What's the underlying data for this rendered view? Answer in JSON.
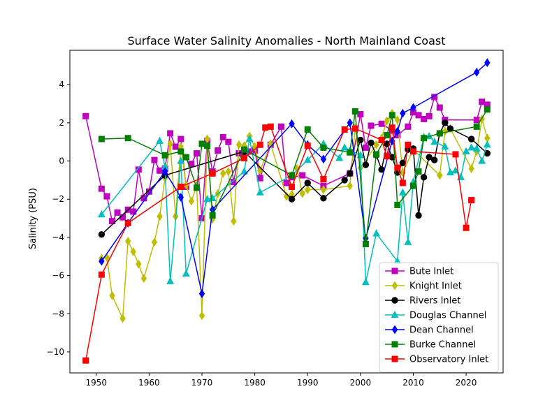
{
  "chart_data": {
    "type": "line",
    "title": "Surface Water Salinity Anomalies - North Mainland Coast",
    "xlabel": "",
    "ylabel": "Salinity (PSU)",
    "xlim": [
      1945,
      2027
    ],
    "ylim": [
      -11.1,
      5.8
    ],
    "xticks": [
      1950,
      1960,
      1970,
      1980,
      1990,
      2000,
      2010,
      2020
    ],
    "yticks": [
      -10,
      -8,
      -6,
      -4,
      -2,
      0,
      2,
      4
    ],
    "ytick_labels": [
      "−10",
      "−8",
      "−6",
      "−4",
      "−2",
      "0",
      "2",
      "4"
    ],
    "grid": false,
    "legend_position": "lower right",
    "series": [
      {
        "name": "Bute Inlet",
        "color": "#bf00bf",
        "marker": "square",
        "points": [
          [
            1948,
            2.35
          ],
          [
            1951,
            -1.45
          ],
          [
            1952,
            -1.85
          ],
          [
            1953,
            -3.15
          ],
          [
            1954,
            -2.7
          ],
          [
            1955,
            -2.95
          ],
          [
            1956,
            -2.55
          ],
          [
            1957,
            -2.65
          ],
          [
            1958,
            -0.45
          ],
          [
            1959,
            -1.95
          ],
          [
            1960,
            -1.6
          ],
          [
            1961,
            0.05
          ],
          [
            1962,
            -0.5
          ],
          [
            1963,
            -0.4
          ],
          [
            1964,
            1.45
          ],
          [
            1965,
            0.75
          ],
          [
            1966,
            1.15
          ],
          [
            1967,
            -1.35
          ],
          [
            1968,
            -0.15
          ],
          [
            1969,
            0.4
          ],
          [
            1970,
            -3.0
          ],
          [
            1971,
            1.05
          ],
          [
            1972,
            -0.55
          ],
          [
            1973,
            0.55
          ],
          [
            1974,
            1.25
          ],
          [
            1975,
            1.0
          ],
          [
            1976,
            -1.1
          ],
          [
            1977,
            0.4
          ],
          [
            1978,
            0.35
          ],
          [
            1979,
            0.5
          ],
          [
            1980,
            0.55
          ],
          [
            1981,
            -0.9
          ],
          [
            1983,
            0.85
          ],
          [
            1985,
            1.8
          ],
          [
            1986,
            -1.15
          ],
          [
            1987,
            -0.85
          ],
          [
            1989,
            -0.75
          ],
          [
            1993,
            -1.3
          ],
          [
            1998,
            -0.65
          ],
          [
            2000,
            2.45
          ],
          [
            2001,
            0.7
          ],
          [
            2002,
            1.85
          ],
          [
            2004,
            1.95
          ],
          [
            2006,
            1.6
          ],
          [
            2007,
            1.35
          ],
          [
            2009,
            1.8
          ],
          [
            2010,
            2.55
          ],
          [
            2011,
            2.4
          ],
          [
            2012,
            2.2
          ],
          [
            2013,
            2.35
          ],
          [
            2014,
            3.35
          ],
          [
            2015,
            2.8
          ],
          [
            2016,
            2.15
          ],
          [
            2022,
            2.15
          ],
          [
            2023,
            3.1
          ],
          [
            2024,
            2.95
          ]
        ]
      },
      {
        "name": "Knight Inlet",
        "color": "#bfbf00",
        "marker": "thin_diamond",
        "points": [
          [
            1951,
            -5.1
          ],
          [
            1952,
            -5.05
          ],
          [
            1953,
            -7.05
          ],
          [
            1955,
            -8.25
          ],
          [
            1956,
            -4.2
          ],
          [
            1957,
            -4.75
          ],
          [
            1958,
            -5.4
          ],
          [
            1959,
            -6.15
          ],
          [
            1961,
            -4.25
          ],
          [
            1962,
            -2.9
          ],
          [
            1963,
            -0.9
          ],
          [
            1964,
            0.9
          ],
          [
            1965,
            -2.9
          ],
          [
            1966,
            0.75
          ],
          [
            1967,
            -1.25
          ],
          [
            1968,
            -2.1
          ],
          [
            1969,
            -1.3
          ],
          [
            1970,
            -8.1
          ],
          [
            1971,
            1.15
          ],
          [
            1972,
            -3.05
          ],
          [
            1973,
            -1.7
          ],
          [
            1974,
            -0.65
          ],
          [
            1975,
            -0.55
          ],
          [
            1976,
            -3.15
          ],
          [
            1977,
            0.85
          ],
          [
            1978,
            0.8
          ],
          [
            1979,
            1.3
          ],
          [
            1980,
            0.75
          ],
          [
            1981,
            -0.5
          ],
          [
            1983,
            0.9
          ],
          [
            1986,
            -1.85
          ],
          [
            1987,
            -1.75
          ],
          [
            1988,
            -0.4
          ],
          [
            1989,
            -1.7
          ],
          [
            1990,
            -1.5
          ],
          [
            1993,
            -1.5
          ],
          [
            1998,
            -1.3
          ],
          [
            1999,
            1.75
          ],
          [
            2000,
            -0.35
          ],
          [
            2003,
            0.85
          ],
          [
            2004,
            1.2
          ],
          [
            2005,
            2.1
          ],
          [
            2006,
            2.5
          ],
          [
            2007,
            2.15
          ],
          [
            2008,
            -0.6
          ],
          [
            2010,
            0.6
          ],
          [
            2015,
            -0.75
          ],
          [
            2016,
            1.55
          ],
          [
            2017,
            1.7
          ],
          [
            2021,
            -0.4
          ],
          [
            2022,
            0.5
          ],
          [
            2023,
            2.2
          ],
          [
            2024,
            1.2
          ]
        ]
      },
      {
        "name": "Rivers Inlet",
        "color": "#000000",
        "marker": "circle",
        "points": [
          [
            1951,
            -3.85
          ],
          [
            1963,
            -0.75
          ],
          [
            1978,
            0.5
          ],
          [
            1987,
            -2.0
          ],
          [
            1990,
            -1.15
          ],
          [
            1993,
            -1.95
          ],
          [
            1997,
            -1.0
          ],
          [
            1998,
            -0.65
          ],
          [
            2000,
            1.1
          ],
          [
            2001,
            -0.2
          ],
          [
            2002,
            0.95
          ],
          [
            2003,
            0.3
          ],
          [
            2004,
            -0.45
          ],
          [
            2005,
            0.9
          ],
          [
            2006,
            0.2
          ],
          [
            2007,
            -0.6
          ],
          [
            2008,
            -0.1
          ],
          [
            2009,
            0.6
          ],
          [
            2010,
            0.65
          ],
          [
            2011,
            -2.85
          ],
          [
            2012,
            -0.85
          ],
          [
            2013,
            0.2
          ],
          [
            2014,
            0.05
          ],
          [
            2015,
            1.45
          ],
          [
            2016,
            2.0
          ],
          [
            2017,
            1.7
          ],
          [
            2021,
            1.15
          ],
          [
            2024,
            0.4
          ]
        ]
      },
      {
        "name": "Douglas Channel",
        "color": "#00bfbf",
        "marker": "triangle",
        "points": [
          [
            1951,
            -2.8
          ],
          [
            1962,
            1.05
          ],
          [
            1963,
            -0.3
          ],
          [
            1964,
            -6.3
          ],
          [
            1966,
            0.0
          ],
          [
            1967,
            -5.9
          ],
          [
            1971,
            -2.0
          ],
          [
            1972,
            -1.95
          ],
          [
            1978,
            -0.55
          ],
          [
            1979,
            1.15
          ],
          [
            1981,
            -1.65
          ],
          [
            1987,
            -0.75
          ],
          [
            1990,
            0.05
          ],
          [
            1993,
            0.9
          ],
          [
            1996,
            0.15
          ],
          [
            1997,
            0.7
          ],
          [
            1998,
            0.55
          ],
          [
            2000,
            0.3
          ],
          [
            2001,
            -6.35
          ],
          [
            2003,
            -3.8
          ],
          [
            2007,
            -5.25
          ],
          [
            2008,
            -1.65
          ],
          [
            2009,
            -4.25
          ],
          [
            2010,
            -1.1
          ],
          [
            2012,
            1.25
          ],
          [
            2013,
            1.3
          ],
          [
            2014,
            1.0
          ],
          [
            2016,
            0.75
          ],
          [
            2017,
            -0.6
          ],
          [
            2018,
            -0.5
          ],
          [
            2019,
            -0.85
          ],
          [
            2020,
            0.5
          ],
          [
            2021,
            0.7
          ],
          [
            2022,
            0.65
          ],
          [
            2023,
            0.0
          ],
          [
            2024,
            0.85
          ]
        ]
      },
      {
        "name": "Dean Channel",
        "color": "#0000ff",
        "marker": "thin_diamond",
        "points": [
          [
            1951,
            -5.25
          ],
          [
            1956,
            -3.25
          ],
          [
            1963,
            -0.55
          ],
          [
            1966,
            -1.9
          ],
          [
            1970,
            -6.95
          ],
          [
            1972,
            -2.55
          ],
          [
            1987,
            1.95
          ],
          [
            1990,
            0.85
          ],
          [
            1993,
            0.1
          ],
          [
            1998,
            2.0
          ],
          [
            2001,
            -4.05
          ],
          [
            2006,
            1.05
          ],
          [
            2007,
            1.55
          ],
          [
            2008,
            2.5
          ],
          [
            2010,
            2.8
          ],
          [
            2022,
            4.65
          ],
          [
            2024,
            5.15
          ]
        ]
      },
      {
        "name": "Burke Channel",
        "color": "#008000",
        "marker": "square",
        "points": [
          [
            1951,
            1.15
          ],
          [
            1956,
            1.2
          ],
          [
            1963,
            0.3
          ],
          [
            1966,
            0.5
          ],
          [
            1967,
            0.2
          ],
          [
            1969,
            -1.4
          ],
          [
            1970,
            0.9
          ],
          [
            1971,
            0.8
          ],
          [
            1972,
            -2.85
          ],
          [
            1978,
            0.6
          ],
          [
            1987,
            -0.75
          ],
          [
            1990,
            1.65
          ],
          [
            1993,
            0.7
          ],
          [
            1998,
            0.45
          ],
          [
            1999,
            2.6
          ],
          [
            2001,
            -4.35
          ],
          [
            2003,
            0.35
          ],
          [
            2005,
            1.35
          ],
          [
            2006,
            2.4
          ],
          [
            2007,
            -2.3
          ],
          [
            2010,
            -1.3
          ],
          [
            2011,
            -0.55
          ],
          [
            2012,
            1.2
          ],
          [
            2015,
            1.45
          ],
          [
            2022,
            1.8
          ],
          [
            2024,
            2.7
          ]
        ]
      },
      {
        "name": "Observatory Inlet",
        "color": "#ff0000",
        "marker": "square",
        "points": [
          [
            1948,
            -10.45
          ],
          [
            1951,
            -5.95
          ],
          [
            1956,
            -3.25
          ],
          [
            1966,
            -1.35
          ],
          [
            1972,
            -0.65
          ],
          [
            1978,
            0.15
          ],
          [
            1981,
            0.85
          ],
          [
            1982,
            1.75
          ],
          [
            1983,
            1.8
          ],
          [
            1987,
            -1.35
          ],
          [
            1990,
            0.8
          ],
          [
            1993,
            -0.95
          ],
          [
            1997,
            1.65
          ],
          [
            1999,
            1.7
          ],
          [
            2004,
            1.1
          ],
          [
            2005,
            0.25
          ],
          [
            2006,
            1.75
          ],
          [
            2007,
            -0.35
          ],
          [
            2008,
            -1.15
          ],
          [
            2009,
            0.85
          ],
          [
            2010,
            0.5
          ],
          [
            2018,
            0.35
          ],
          [
            2020,
            -3.5
          ],
          [
            2021,
            -2.05
          ]
        ]
      }
    ]
  }
}
